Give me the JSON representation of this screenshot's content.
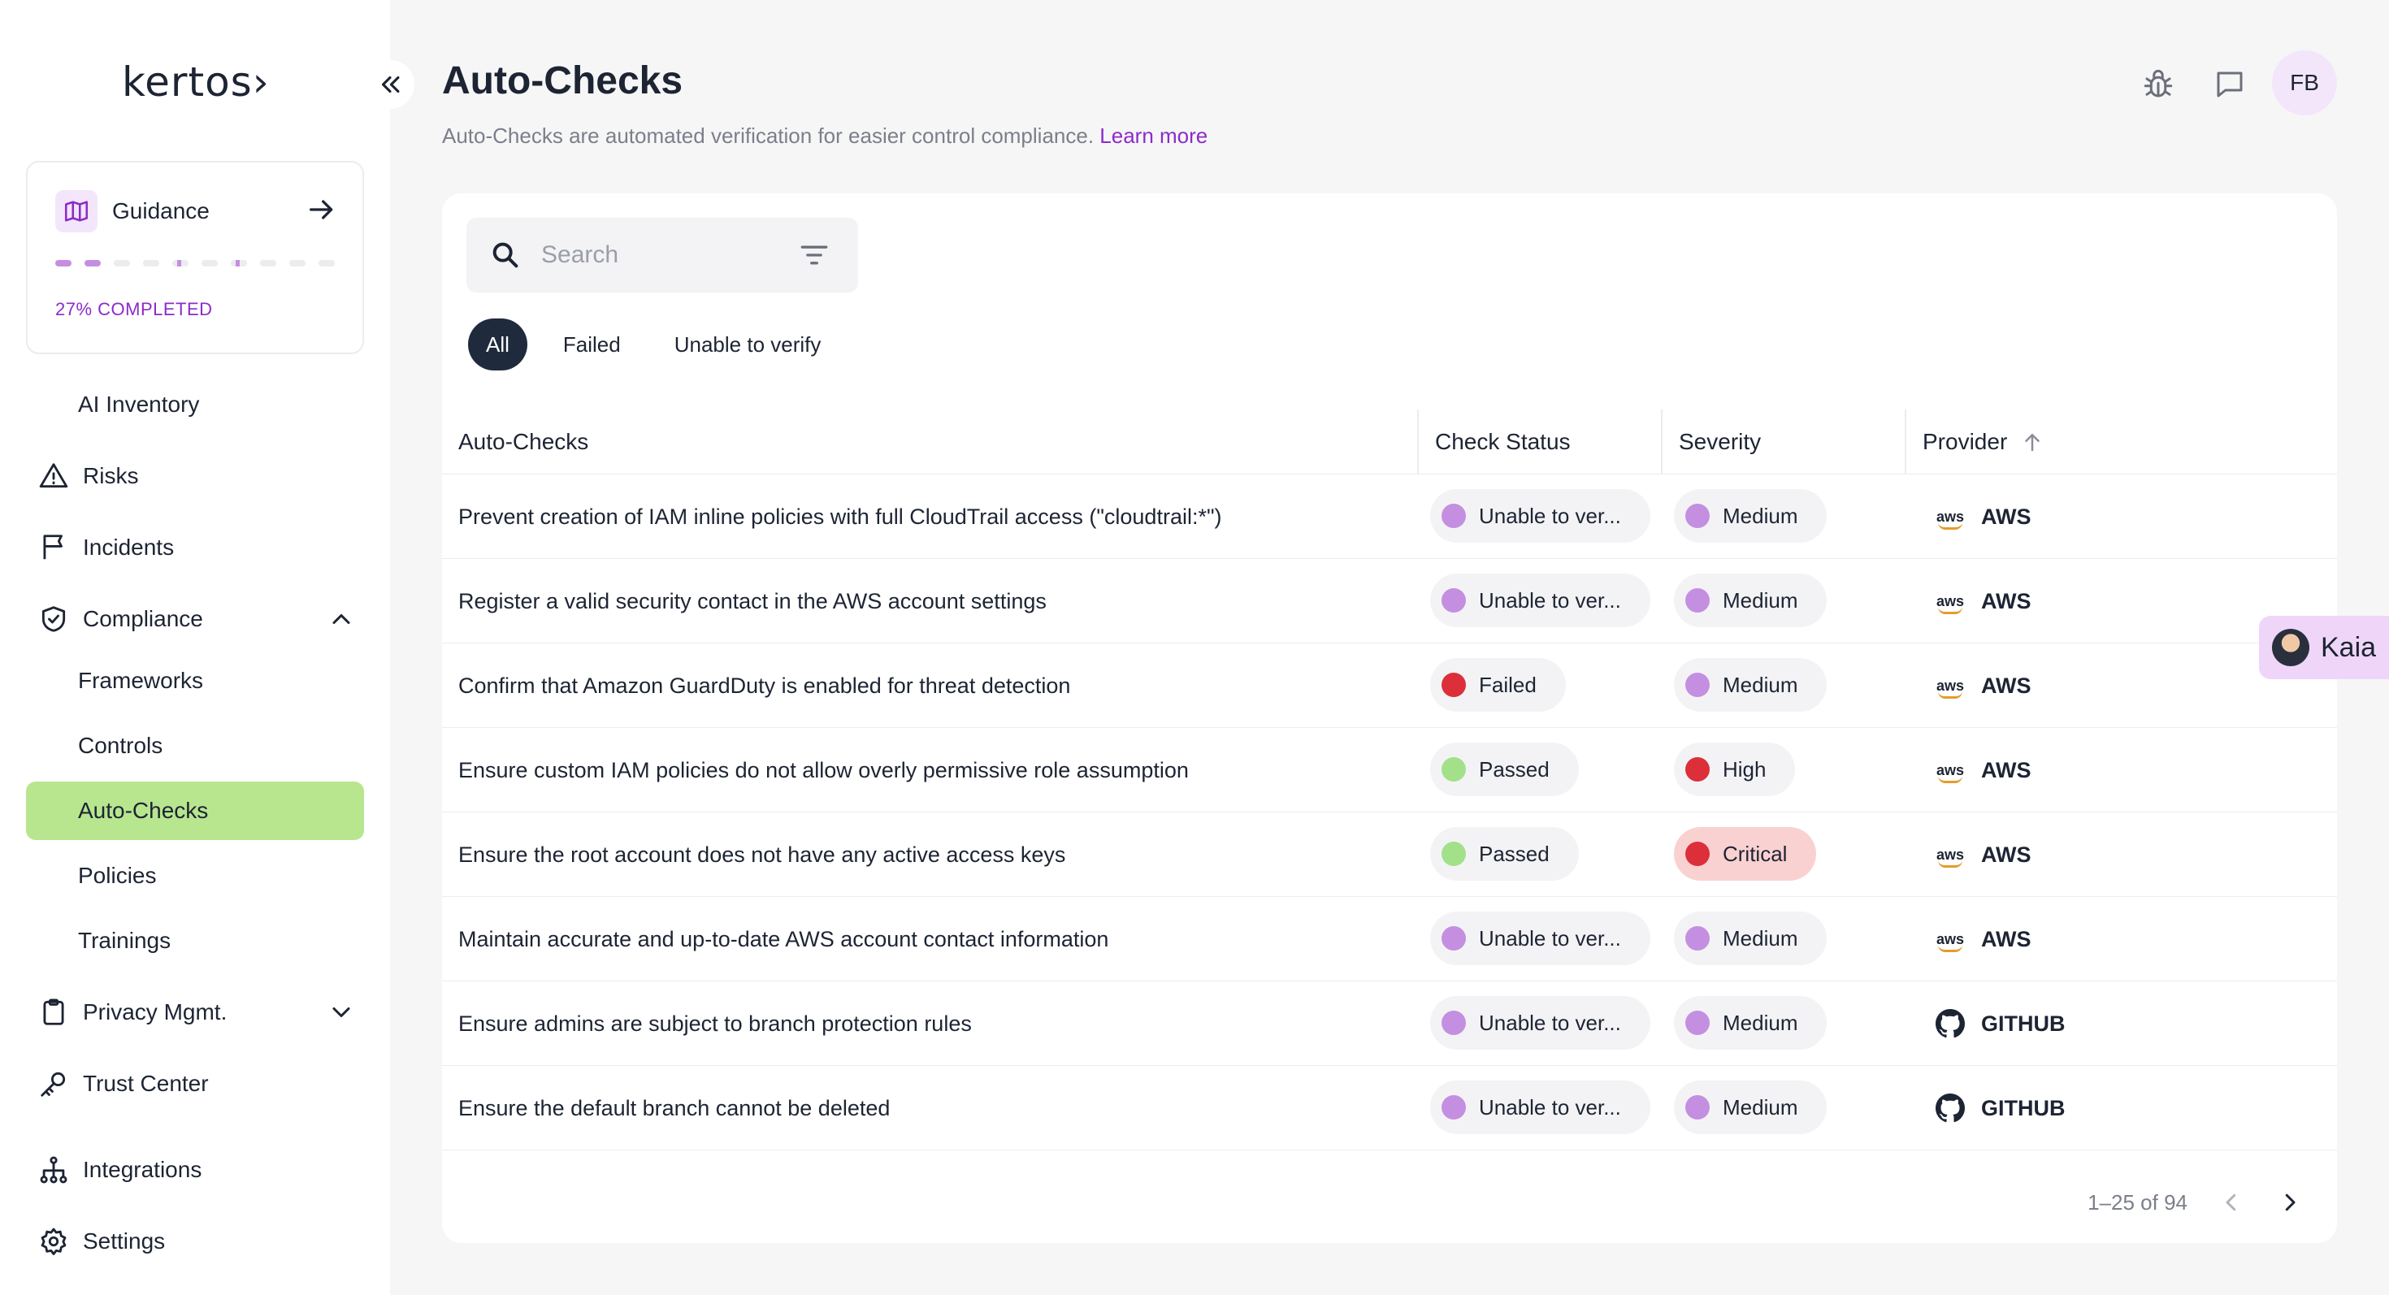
{
  "brand": {
    "logo_text": "kertos›"
  },
  "sidebar": {
    "guidance": {
      "label": "Guidance",
      "progress_text": "27% COMPLETED",
      "progress_fraction": 0.27
    },
    "items": [
      {
        "label": "AI Inventory",
        "icon": "none"
      },
      {
        "label": "Risks",
        "icon": "warning-triangle-icon"
      },
      {
        "label": "Incidents",
        "icon": "flag-icon"
      },
      {
        "label": "Compliance",
        "icon": "shield-check-icon",
        "expanded": true
      },
      {
        "label": "Frameworks"
      },
      {
        "label": "Controls"
      },
      {
        "label": "Auto-Checks",
        "active": true
      },
      {
        "label": "Policies"
      },
      {
        "label": "Trainings"
      },
      {
        "label": "Privacy Mgmt.",
        "icon": "clipboard-icon",
        "expanded": false
      },
      {
        "label": "Trust Center",
        "icon": "key-icon"
      },
      {
        "label": "Integrations",
        "icon": "hierarchy-icon"
      },
      {
        "label": "Settings",
        "icon": "gear-icon"
      }
    ]
  },
  "header": {
    "title": "Auto-Checks",
    "subtitle": "Auto-Checks are automated verification for easier control compliance.",
    "learn_more": "Learn more",
    "avatar_initials": "FB"
  },
  "search": {
    "placeholder": "Search"
  },
  "filters": [
    {
      "label": "All",
      "active": true
    },
    {
      "label": "Failed",
      "active": false
    },
    {
      "label": "Unable to verify",
      "active": false
    }
  ],
  "table": {
    "columns": [
      "Auto-Checks",
      "Check Status",
      "Severity",
      "Provider"
    ],
    "rows": [
      {
        "name": "Prevent creation of IAM inline policies with full CloudTrail access (\"cloudtrail:*\")",
        "status": "Unable to ver...",
        "status_color": "#c48fe0",
        "severity": "Medium",
        "severity_color": "#c48fe0",
        "provider": "AWS"
      },
      {
        "name": "Register a valid security contact in the AWS account settings",
        "status": "Unable to ver...",
        "status_color": "#c48fe0",
        "severity": "Medium",
        "severity_color": "#c48fe0",
        "provider": "AWS"
      },
      {
        "name": "Confirm that Amazon GuardDuty is enabled for threat detection",
        "status": "Failed",
        "status_color": "#dc2f3a",
        "severity": "Medium",
        "severity_color": "#c48fe0",
        "provider": "AWS"
      },
      {
        "name": "Ensure custom IAM policies do not allow overly permissive role assumption",
        "status": "Passed",
        "status_color": "#a3e08a",
        "severity": "High",
        "severity_color": "#dc2f3a",
        "provider": "AWS"
      },
      {
        "name": "Ensure the root account does not have any active access keys",
        "status": "Passed",
        "status_color": "#a3e08a",
        "severity": "Critical",
        "severity_color": "#dc2f3a",
        "provider": "AWS"
      },
      {
        "name": "Maintain accurate and up-to-date AWS account contact information",
        "status": "Unable to ver...",
        "status_color": "#c48fe0",
        "severity": "Medium",
        "severity_color": "#c48fe0",
        "provider": "AWS"
      },
      {
        "name": "Ensure admins are subject to branch protection rules",
        "status": "Unable to ver...",
        "status_color": "#c48fe0",
        "severity": "Medium",
        "severity_color": "#c48fe0",
        "provider": "GITHUB"
      },
      {
        "name": "Ensure the default branch cannot be deleted",
        "status": "Unable to ver...",
        "status_color": "#c48fe0",
        "severity": "Medium",
        "severity_color": "#c48fe0",
        "provider": "GITHUB"
      }
    ]
  },
  "pagination": {
    "text": "1–25 of 94"
  },
  "assistant": {
    "label": "Kaia"
  },
  "colors": {
    "accent": "#8d2bc8",
    "active_nav": "#b7e68f",
    "dark_tab": "#1f2a3d"
  }
}
